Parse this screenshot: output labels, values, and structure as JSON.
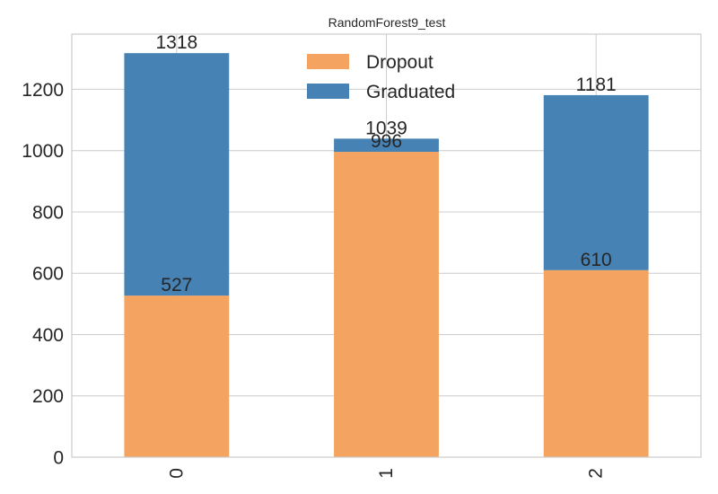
{
  "chart_data": {
    "type": "bar",
    "stacked": true,
    "title": "RandomForest9_test",
    "xlabel": "",
    "ylabel": "",
    "categories": [
      "0",
      "1",
      "2"
    ],
    "series": [
      {
        "name": "Dropout",
        "color": "#f4a460",
        "values": [
          527,
          996,
          610
        ]
      },
      {
        "name": "Graduated",
        "color": "#4682b4",
        "values": [
          791,
          43,
          571
        ]
      }
    ],
    "stack_labels": {
      "bottom": [
        "527",
        "996",
        "610"
      ],
      "top": [
        "1318",
        "1039",
        "1181"
      ]
    },
    "ylim": [
      0,
      1380
    ],
    "yticks": [
      0,
      200,
      400,
      600,
      800,
      1000,
      1200
    ],
    "ytick_labels": [
      "0",
      "200",
      "400",
      "600",
      "800",
      "1000",
      "1200"
    ],
    "grid": true,
    "legend_position": "top-center",
    "xtick_rotation": "vertical"
  }
}
